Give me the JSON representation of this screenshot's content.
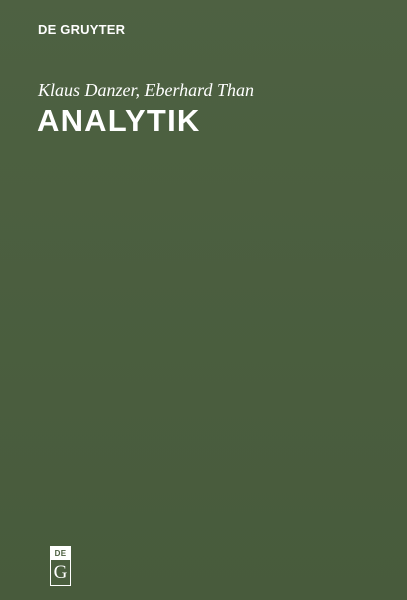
{
  "publisher": {
    "name": "DE GRUYTER"
  },
  "book": {
    "authors": "Klaus Danzer, Eberhard Than",
    "title": "ANALYTIK"
  },
  "logo": {
    "top_text": "DE",
    "bottom_text": "G"
  },
  "colors": {
    "cover_background": "#4a5e3e",
    "text": "#ffffff"
  }
}
